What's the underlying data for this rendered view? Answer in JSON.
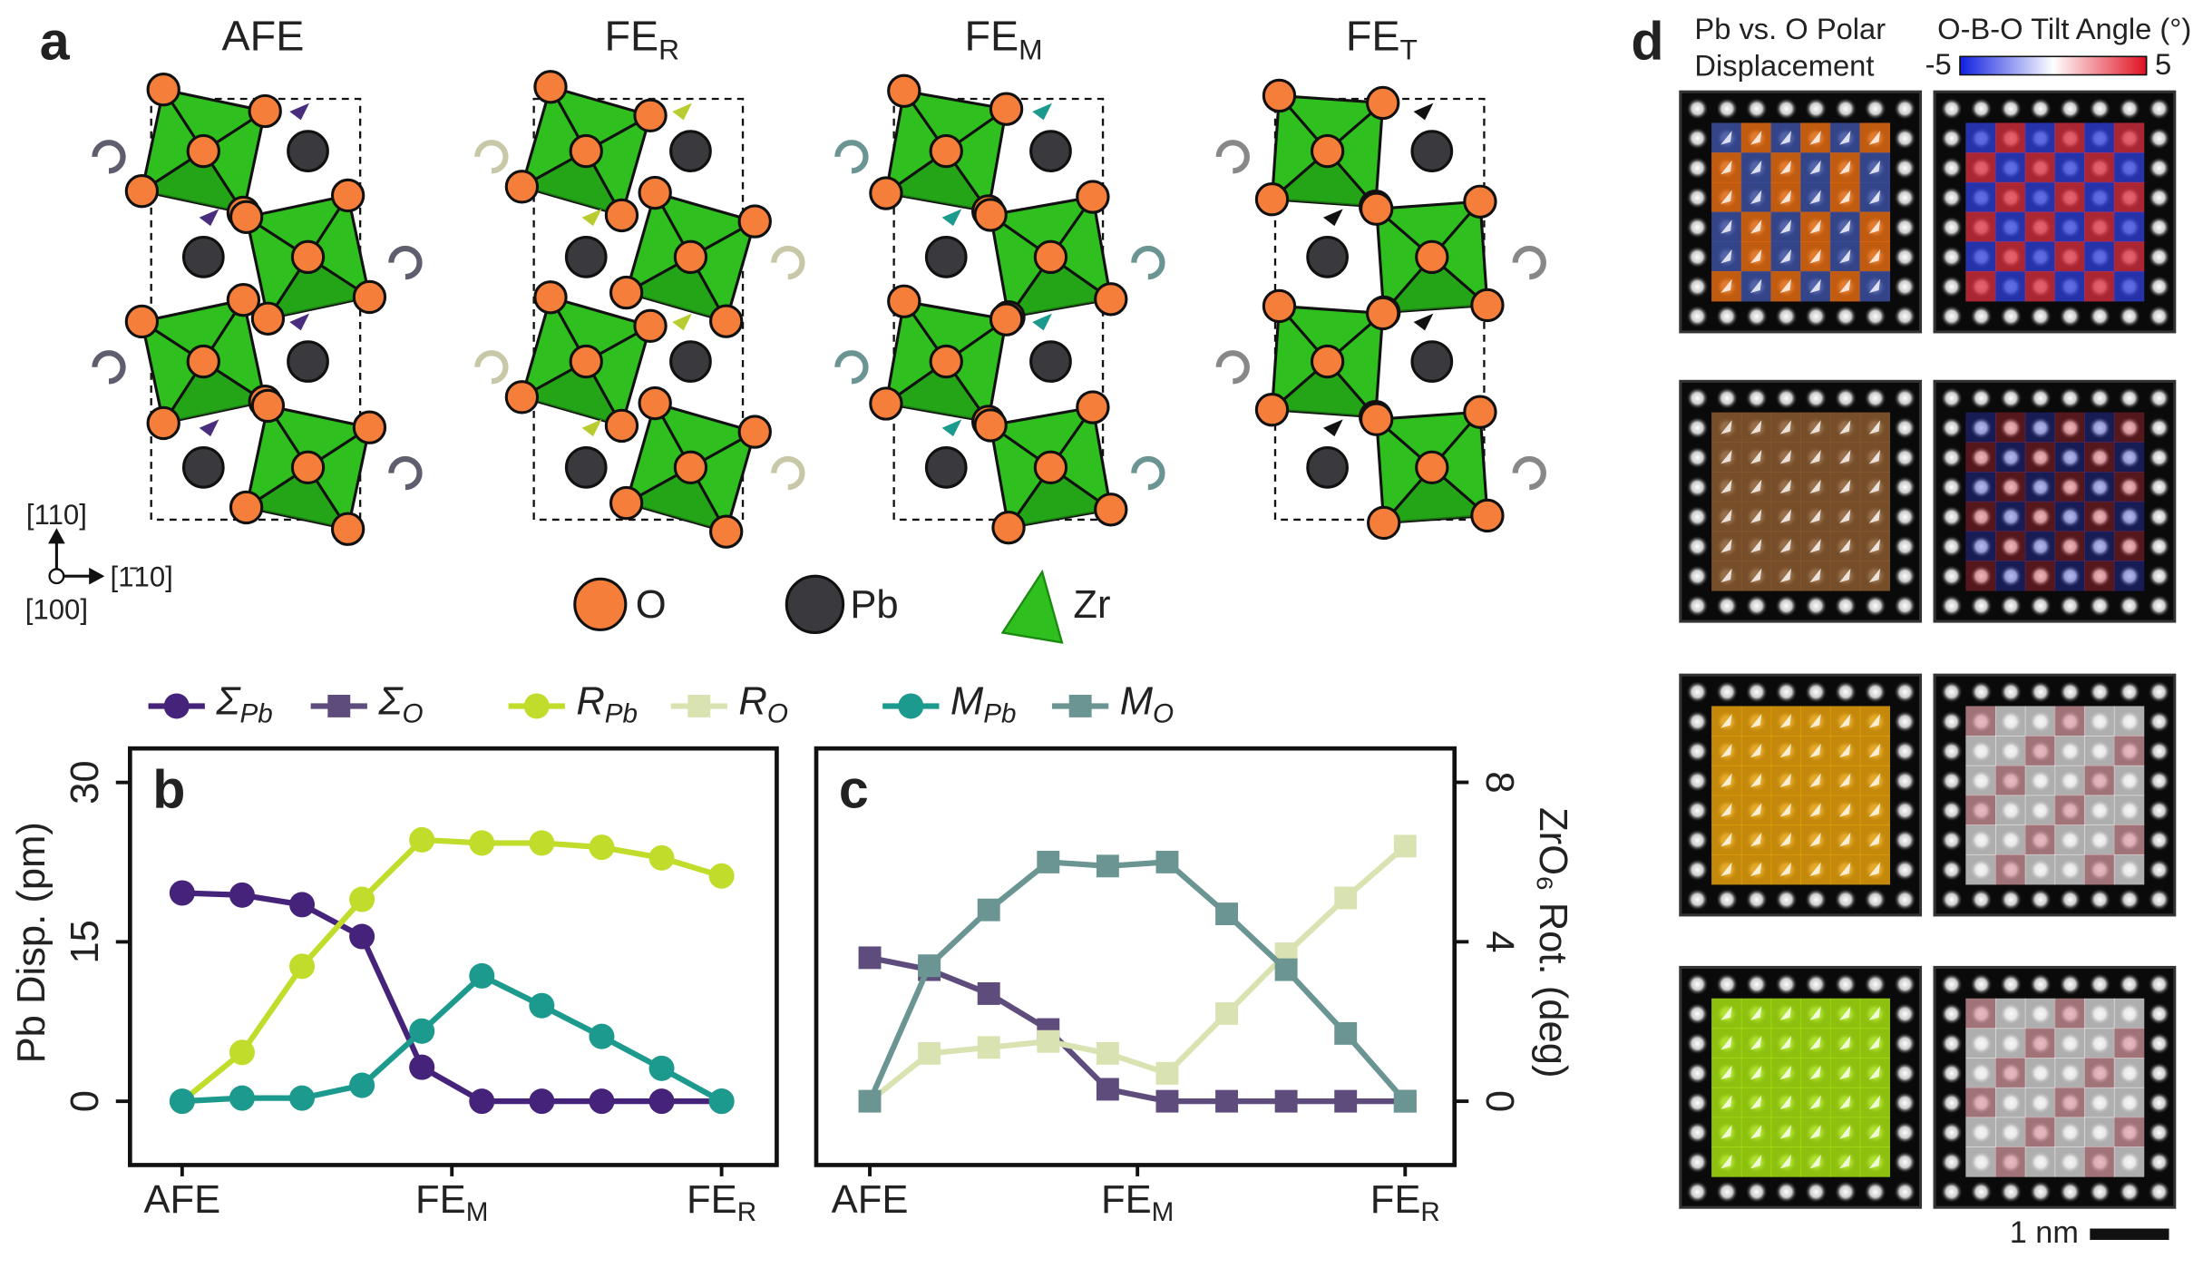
{
  "panel_a": {
    "label": "a",
    "structures": [
      {
        "label": "AFE"
      },
      {
        "label": "FE",
        "sub": "R"
      },
      {
        "label": "FE",
        "sub": "M"
      },
      {
        "label": "FE",
        "sub": "T"
      }
    ],
    "legend": [
      "O",
      "Pb",
      "Zr"
    ],
    "axes": [
      "[110]",
      "[1̄10]",
      "[100]"
    ]
  },
  "chart_data": [
    {
      "type": "line",
      "label": "b",
      "marker": "circle",
      "y_label": "Pb Disp. (pm)",
      "yaxis_position": "left",
      "x": [
        0,
        1,
        2,
        3,
        4,
        5,
        6,
        7,
        8,
        9
      ],
      "xlim": [
        -0.87,
        9.92
      ],
      "xticks": [
        {
          "value": 0,
          "label": "AFE"
        },
        {
          "value": 4.5,
          "label": "FE",
          "sub": "M"
        },
        {
          "value": 9,
          "label": "FE",
          "sub": "R"
        }
      ],
      "ylim": [
        -6,
        33.2
      ],
      "yticks": [
        0,
        15,
        30
      ],
      "series": [
        {
          "name": "Σ",
          "name_sub": "Pb",
          "color": "#46237a",
          "values": [
            19.6,
            19.4,
            18.5,
            15.5,
            3.2,
            0,
            0,
            0,
            0,
            0
          ]
        },
        {
          "name": "R",
          "name_sub": "Pb",
          "color": "#c2dc2c",
          "values": [
            0,
            4.6,
            12.7,
            19.0,
            24.6,
            24.3,
            24.3,
            23.9,
            22.9,
            21.2
          ]
        },
        {
          "name": "M",
          "name_sub": "Pb",
          "color": "#1d9a8e",
          "values": [
            0,
            0.3,
            0.3,
            1.5,
            6.6,
            11.8,
            9.0,
            6.1,
            3.1,
            0
          ]
        }
      ]
    },
    {
      "type": "line",
      "label": "c",
      "marker": "square",
      "y_label": "ZrO₆ Rot. (deg)",
      "yaxis_position": "right",
      "x": [
        0,
        1,
        2,
        3,
        4,
        5,
        6,
        7,
        8,
        9
      ],
      "xlim": [
        -0.9,
        9.83
      ],
      "xticks": [
        {
          "value": 0,
          "label": "AFE"
        },
        {
          "value": 4.5,
          "label": "FE",
          "sub": "M"
        },
        {
          "value": 9,
          "label": "FE",
          "sub": "R"
        }
      ],
      "ylim": [
        -1.6,
        8.85
      ],
      "yticks": [
        0,
        4,
        8
      ],
      "series": [
        {
          "name": "Σ",
          "name_sub": "O",
          "color": "#5e4d7c",
          "values": [
            3.6,
            3.3,
            2.7,
            1.8,
            0.3,
            0,
            0,
            0,
            0,
            0
          ]
        },
        {
          "name": "R",
          "name_sub": "O",
          "color": "#d9e3b2",
          "values": [
            0,
            1.2,
            1.35,
            1.5,
            1.2,
            0.7,
            2.2,
            3.7,
            5.1,
            6.4
          ]
        },
        {
          "name": "M",
          "name_sub": "O",
          "color": "#6b9592",
          "values": [
            0,
            3.4,
            4.8,
            6.0,
            5.9,
            6.0,
            4.7,
            3.3,
            1.7,
            0
          ]
        }
      ]
    }
  ],
  "panel_d": {
    "label": "d",
    "polar_title": [
      "Pb vs. O Polar",
      "Displacement"
    ],
    "tilt_title": "O-B-O Tilt Angle (°)",
    "colorbar": {
      "ticks": [
        -5,
        5
      ]
    },
    "scale_bar": "1 nm"
  }
}
